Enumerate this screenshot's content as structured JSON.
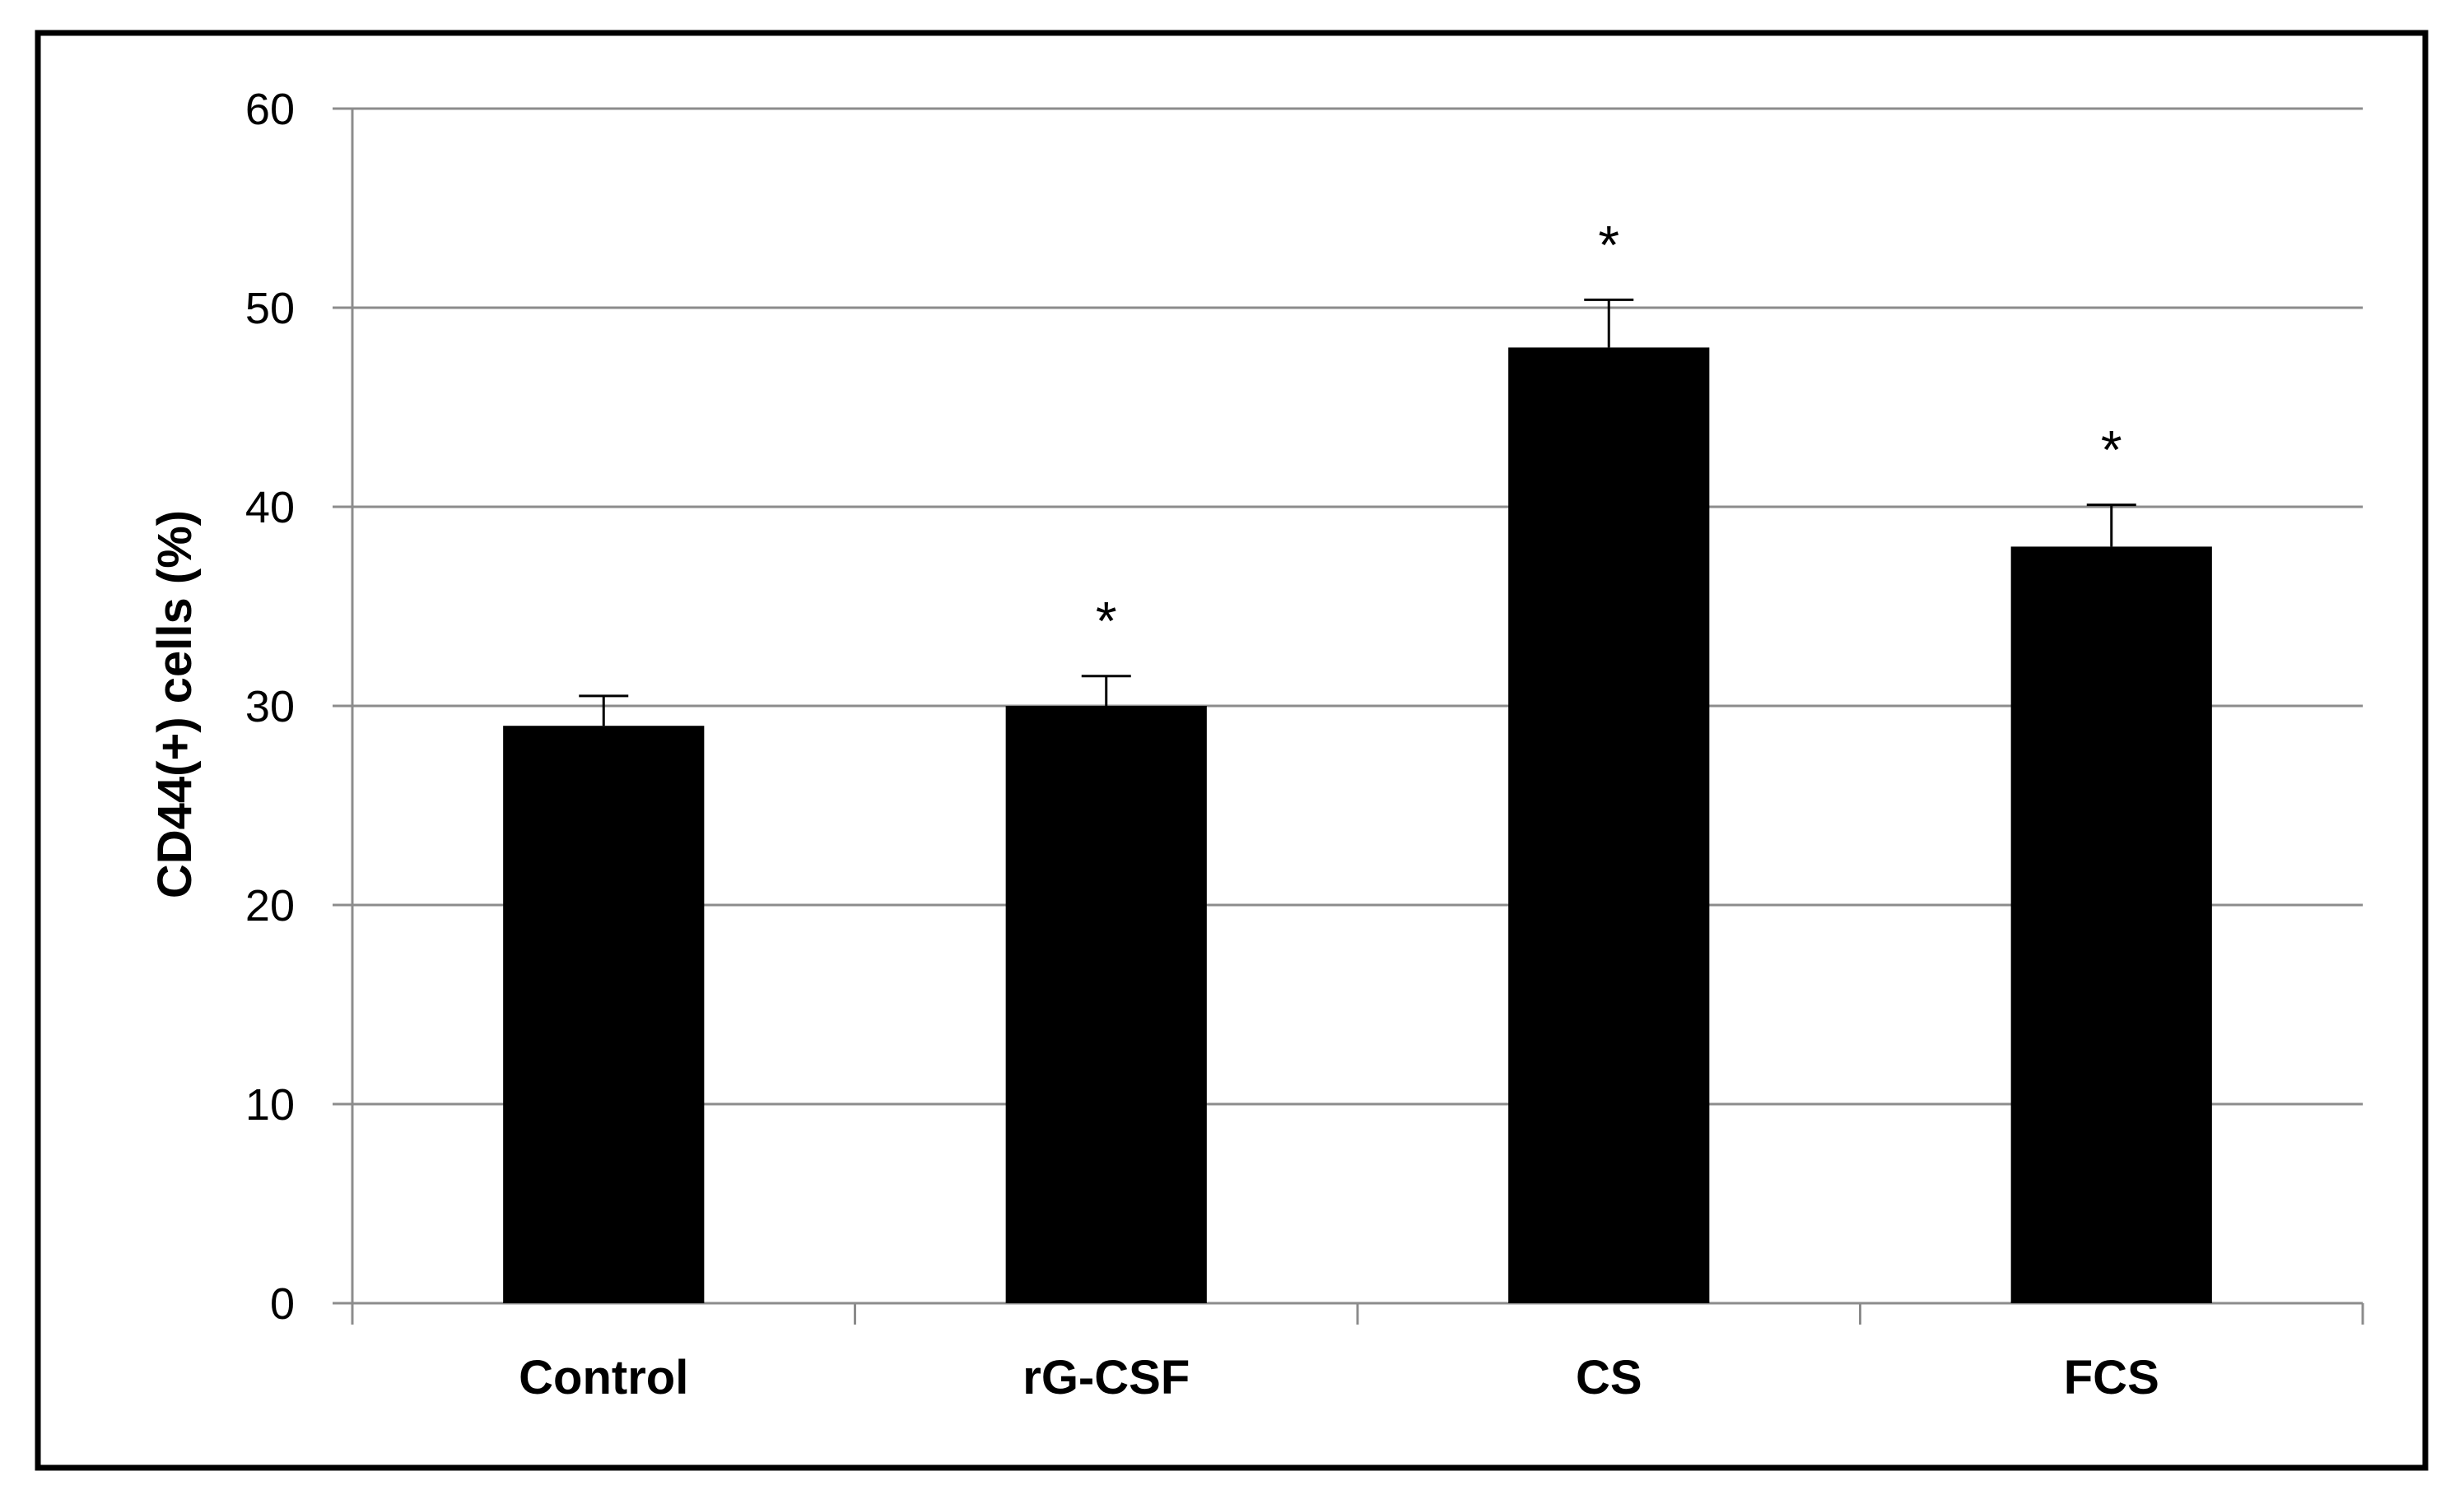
{
  "chart_data": {
    "type": "bar",
    "title": "",
    "xlabel": "",
    "ylabel": "CD44(+) cells (%)",
    "categories": [
      "Control",
      "rG-CSF",
      "CS",
      "FCS"
    ],
    "values": [
      29,
      30,
      48,
      38
    ],
    "error_bars": [
      1.5,
      1.5,
      2.4,
      2.1
    ],
    "significance": [
      "",
      "*",
      "*",
      "*"
    ],
    "ylim": [
      0,
      60
    ],
    "yticks": [
      0,
      10,
      20,
      30,
      40,
      50,
      60
    ],
    "ytick_labels": [
      "0",
      "10",
      "20",
      "30",
      "40",
      "50",
      "60"
    ],
    "grid": true,
    "legend": "none",
    "colors": {
      "bar": "#000000",
      "gridline": "#8c8c8c",
      "axis": "#8c8c8c",
      "frame": "#000000",
      "background": "#ffffff"
    }
  }
}
